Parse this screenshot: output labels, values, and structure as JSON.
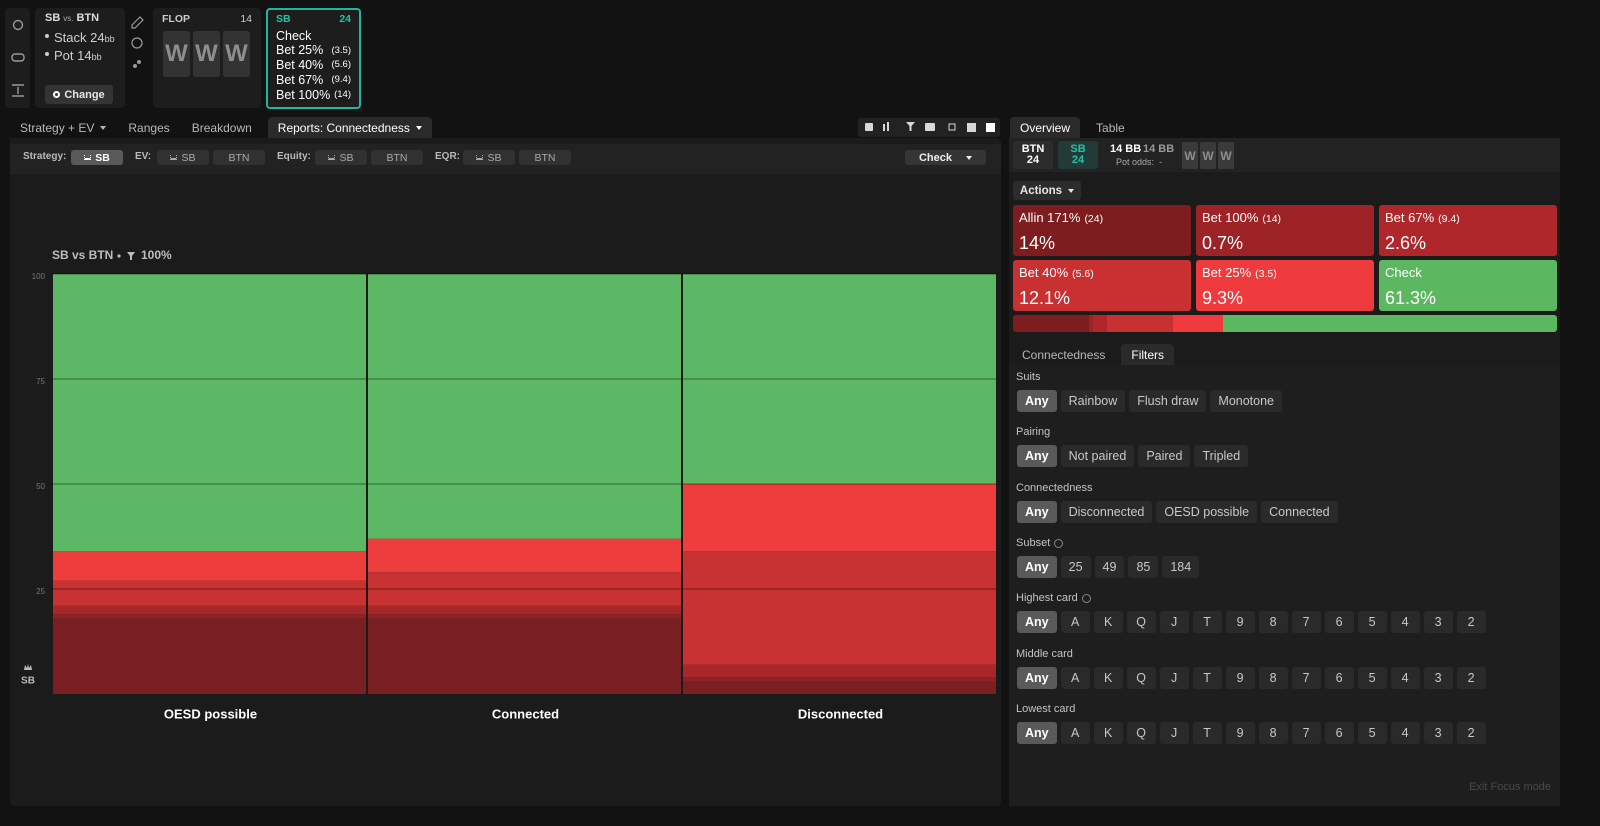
{
  "session": {
    "hero": "SB",
    "vs": "vs.",
    "villain": "BTN",
    "stack": "Stack 24",
    "stack_unit": "bb",
    "pot": "Pot 14",
    "pot_unit": "bb",
    "change_button": "Change"
  },
  "flop": {
    "label": "FLOP",
    "pot": "14",
    "cards": [
      "W",
      "W",
      "W"
    ]
  },
  "node": {
    "player": "SB",
    "stack": "24",
    "actions": [
      {
        "name": "Check"
      },
      {
        "name": "Bet 25%",
        "size": "(3.5)"
      },
      {
        "name": "Bet 40%",
        "size": "(5.6)"
      },
      {
        "name": "Bet 67%",
        "size": "(9.4)"
      },
      {
        "name": "Bet 100%",
        "size": "(14)"
      }
    ]
  },
  "tabs": [
    "Strategy + EV",
    "Ranges",
    "Breakdown",
    "Reports: Connectedness"
  ],
  "filter_bar": {
    "groups": [
      {
        "label": "Strategy:",
        "options": [
          "SB"
        ]
      },
      {
        "label": "EV:",
        "options": [
          "SB",
          "BTN"
        ]
      },
      {
        "label": "Equity:",
        "options": [
          "SB",
          "BTN"
        ]
      },
      {
        "label": "EQR:",
        "options": [
          "SB",
          "BTN"
        ]
      }
    ],
    "action_select": "Check"
  },
  "chart_data": {
    "type": "bar",
    "stacked": true,
    "title": "SB vs BTN",
    "filter": "100%",
    "y_label": "SB",
    "categories": [
      "OESD possible",
      "Connected",
      "Disconnected"
    ],
    "ylim": [
      0,
      100
    ],
    "yticks": [
      25,
      50,
      75,
      100
    ],
    "grid": true,
    "series": [
      {
        "color": "#7a1f22",
        "values": [
          18,
          18,
          3
        ]
      },
      {
        "color": "#8e2226",
        "values": [
          1,
          1,
          1
        ]
      },
      {
        "color": "#a8272a",
        "values": [
          2,
          2,
          3
        ]
      },
      {
        "color": "#c93232",
        "values": [
          6,
          8,
          27
        ]
      },
      {
        "color": "#ee3d3d",
        "values": [
          7,
          8,
          16
        ]
      },
      {
        "color": "#5cb865",
        "values": [
          66,
          63,
          50
        ]
      }
    ]
  },
  "overview": {
    "tabs": [
      "Overview",
      "Table"
    ],
    "players": [
      {
        "name": "BTN",
        "stack": "24"
      },
      {
        "name": "SB",
        "stack": "24"
      }
    ],
    "pot": "14 BB",
    "effective": "14 BB",
    "pot_odds_label": "Pot odds:",
    "pot_odds": "-",
    "cards": [
      "W",
      "W",
      "W"
    ]
  },
  "actions": {
    "label": "Actions",
    "items": [
      {
        "name": "Allin 171%",
        "size": "(24)",
        "frequency": 14,
        "frequency_label": "14%",
        "color": "#7d1d20"
      },
      {
        "name": "Bet 100%",
        "size": "(14)",
        "frequency": 0.7,
        "frequency_label": "0.7%",
        "color": "#9e2327"
      },
      {
        "name": "Bet 67%",
        "size": "(9.4)",
        "frequency": 2.6,
        "frequency_label": "2.6%",
        "color": "#b0272b"
      },
      {
        "name": "Bet 40%",
        "size": "(5.6)",
        "frequency": 12.1,
        "frequency_label": "12.1%",
        "color": "#c93032"
      },
      {
        "name": "Bet 25%",
        "size": "(3.5)",
        "frequency": 9.3,
        "frequency_label": "9.3%",
        "color": "#ef3b3d"
      },
      {
        "name": "Check",
        "frequency": 61.3,
        "frequency_label": "61.3%",
        "color": "#5cb860"
      }
    ]
  },
  "filters": {
    "tabs": [
      "Connectedness",
      "Filters"
    ],
    "sections": [
      {
        "label": "Suits",
        "options": [
          "Any",
          "Rainbow",
          "Flush draw",
          "Monotone"
        ]
      },
      {
        "label": "Pairing",
        "options": [
          "Any",
          "Not paired",
          "Paired",
          "Tripled"
        ]
      },
      {
        "label": "Connectedness",
        "options": [
          "Any",
          "Disconnected",
          "OESD possible",
          "Connected"
        ]
      },
      {
        "label": "Subset",
        "help": true,
        "options": [
          "Any",
          "25",
          "49",
          "85",
          "184"
        ]
      },
      {
        "label": "Highest card",
        "help": true,
        "options": [
          "Any",
          "A",
          "K",
          "Q",
          "J",
          "T",
          "9",
          "8",
          "7",
          "6",
          "5",
          "4",
          "3",
          "2"
        ]
      },
      {
        "label": "Middle card",
        "options": [
          "Any",
          "A",
          "K",
          "Q",
          "J",
          "T",
          "9",
          "8",
          "7",
          "6",
          "5",
          "4",
          "3",
          "2"
        ]
      },
      {
        "label": "Lowest card",
        "options": [
          "Any",
          "A",
          "K",
          "Q",
          "J",
          "T",
          "9",
          "8",
          "7",
          "6",
          "5",
          "4",
          "3",
          "2"
        ]
      }
    ]
  },
  "exit_focus": "Exit Focus mode"
}
